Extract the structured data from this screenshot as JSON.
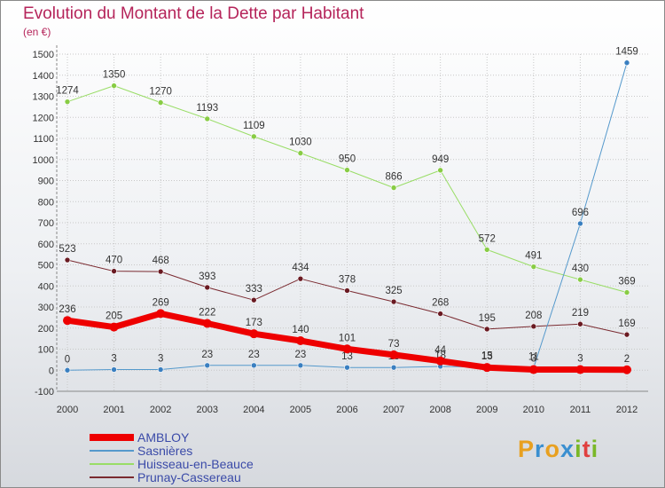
{
  "title": "Evolution du Montant de la Dette par Habitant",
  "subtitle": "(en €)",
  "logo": {
    "text": "Proxiti",
    "colors": [
      "#e8a020",
      "#3a8fd0",
      "#e8a020",
      "#3a8fd0",
      "#7ab828",
      "#e04040",
      "#7ab828"
    ]
  },
  "chart_data": {
    "type": "line",
    "x": [
      "2000",
      "2001",
      "2002",
      "2003",
      "2004",
      "2005",
      "2006",
      "2007",
      "2008",
      "2009",
      "2010",
      "2011",
      "2012"
    ],
    "ylim": [
      -100,
      1500
    ],
    "yticks": [
      "-100",
      "0",
      "100",
      "200",
      "300",
      "400",
      "500",
      "600",
      "700",
      "800",
      "900",
      "1000",
      "1100",
      "1200",
      "1300",
      "1400",
      "1500"
    ],
    "grid": true,
    "legend_position": "bottom-left",
    "series": [
      {
        "name": "Huisseau-en-Beauce",
        "color": "#99dd66",
        "marker": "#88cc44",
        "width": 1,
        "values": [
          1274,
          1350,
          1270,
          1193,
          1109,
          1030,
          950,
          866,
          949,
          572,
          491,
          430,
          369
        ],
        "labels": [
          "1274",
          "1350",
          "1270",
          "1193",
          "1109",
          "1030",
          "950",
          "866",
          "949",
          "572",
          "491",
          "430",
          "369"
        ]
      },
      {
        "name": "Prunay-Cassereau",
        "color": "#7a2a30",
        "marker": "#6a1a22",
        "width": 1,
        "values": [
          523,
          470,
          468,
          393,
          333,
          434,
          378,
          325,
          268,
          195,
          208,
          219,
          169
        ],
        "labels": [
          "523",
          "470",
          "468",
          "393",
          "333",
          "434",
          "378",
          "325",
          "268",
          "195",
          "208",
          "219",
          "169"
        ]
      },
      {
        "name": "Sasnières",
        "color": "#5599cc",
        "marker": "#3a7fc0",
        "width": 1,
        "values": [
          0,
          3,
          3,
          23,
          23,
          23,
          13,
          13,
          18,
          15,
          11,
          696,
          1459
        ],
        "labels": [
          "0",
          "3",
          "3",
          "23",
          "23",
          "23",
          "13",
          "13",
          "18",
          "15",
          "11",
          "696",
          "1459"
        ]
      },
      {
        "name": "AMBLOY",
        "color": "#ee0000",
        "marker": "#ee0000",
        "width": 7,
        "values": [
          236,
          205,
          269,
          222,
          173,
          140,
          101,
          73,
          44,
          13,
          3,
          3,
          2
        ],
        "labels": [
          "236",
          "205",
          "269",
          "222",
          "173",
          "140",
          "101",
          "73",
          "44",
          "13",
          "3",
          "3",
          "2"
        ]
      }
    ]
  },
  "legend": [
    {
      "label": "AMBLOY",
      "color": "#ee0000",
      "thickness": 8
    },
    {
      "label": "Sasnières",
      "color": "#5599cc",
      "thickness": 2
    },
    {
      "label": "Huisseau-en-Beauce",
      "color": "#99dd66",
      "thickness": 2
    },
    {
      "label": "Prunay-Cassereau",
      "color": "#7a2a30",
      "thickness": 2
    }
  ]
}
